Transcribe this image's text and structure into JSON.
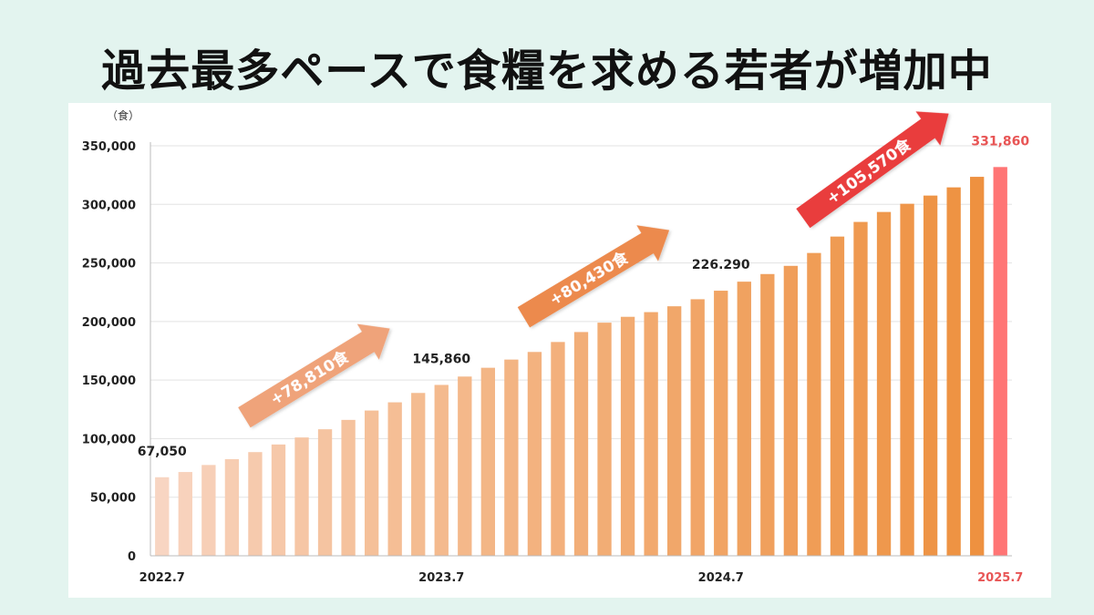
{
  "title": "過去最多ペースで食糧を求める若者が増加中",
  "colors": {
    "background": "#e3f4ef",
    "bar_start": "#f8d5c2",
    "bar_end": "#ee9140",
    "bar_highlight": "#ff7575",
    "arrow1": "#efa37a",
    "arrow2": "#ec8a4e",
    "arrow3": "#e93d3d",
    "highlight_text": "#e85555"
  },
  "chart_data": {
    "type": "bar",
    "ylabel": "（食）",
    "ylim": [
      0,
      350000
    ],
    "yticks": [
      "0",
      "50,000",
      "100,000",
      "150,000",
      "200,000",
      "250,000",
      "300,000",
      "350,000"
    ],
    "ytick_values": [
      0,
      50000,
      100000,
      150000,
      200000,
      250000,
      300000,
      350000
    ],
    "x_tick_labels": [
      {
        "index": 0,
        "label": "2022.7"
      },
      {
        "index": 12,
        "label": "2023.7"
      },
      {
        "index": 24,
        "label": "2024.7"
      },
      {
        "index": 36,
        "label": "2025.7"
      }
    ],
    "values": [
      67050,
      71500,
      77500,
      82500,
      88500,
      95000,
      101000,
      108000,
      116000,
      124000,
      131000,
      139000,
      145860,
      153000,
      160500,
      167500,
      174000,
      182500,
      191000,
      199000,
      204000,
      208000,
      213000,
      219000,
      226290,
      234000,
      240500,
      247500,
      258500,
      272500,
      285000,
      293500,
      300500,
      307500,
      314500,
      323500,
      331860
    ],
    "value_labels": [
      {
        "index": 0,
        "text": "67,050"
      },
      {
        "index": 12,
        "text": "145,860"
      },
      {
        "index": 24,
        "text": "226.290"
      },
      {
        "index": 36,
        "text": "331,860"
      }
    ],
    "annotations": [
      {
        "text": "+78,810食",
        "from_index": 4,
        "to_index": 9
      },
      {
        "text": "+80,430食",
        "from_index": 16,
        "to_index": 21
      },
      {
        "text": "+105,570食",
        "from_index": 28,
        "to_index": 33
      }
    ],
    "grid": true,
    "legend": "none"
  }
}
